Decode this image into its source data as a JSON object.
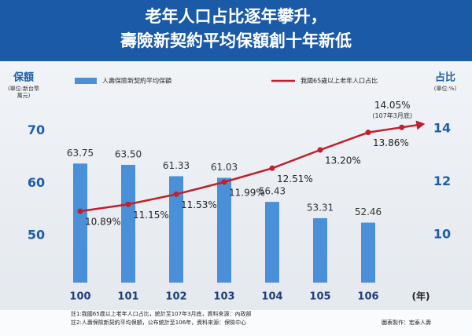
{
  "chart_data": {
    "type": "bar",
    "title": [
      "老年人口占比逐年攀升，",
      "壽險新契約平均保額創十年新低"
    ],
    "y_label": "保額",
    "y_unit": "(單位:新台幣萬元)",
    "y2_label": "占比",
    "y2_unit": "(單位:%)",
    "x_label": "(年)",
    "x": [
      100,
      101,
      102,
      103,
      104,
      105,
      106
    ],
    "xlim": [
      99.4,
      107.3
    ],
    "xticks": [
      100,
      101,
      102,
      103,
      104,
      105,
      106
    ],
    "ylim": [
      41,
      77
    ],
    "yticks": [
      50,
      60,
      70
    ],
    "y2lim": [
      8.2,
      15.3
    ],
    "y2ticks": [
      10,
      12,
      14
    ],
    "series": [
      {
        "name": "人壽保險新契約平均保額",
        "type": "bar",
        "color": "#4a90d9",
        "values": [
          63.75,
          63.5,
          61.33,
          61.03,
          56.43,
          53.31,
          52.46
        ],
        "value_labels": [
          "63.75",
          "63.50",
          "61.33",
          "61.03",
          "56.43",
          "53.31",
          "52.46"
        ]
      },
      {
        "name": "我國65歲以上老年人口占比",
        "type": "line",
        "axis": "y2",
        "color": "#c0202a",
        "x": [
          100,
          101,
          102,
          103,
          104,
          105,
          106,
          106.7
        ],
        "values": [
          10.89,
          11.15,
          11.53,
          11.99,
          12.51,
          13.2,
          13.86,
          14.05
        ],
        "value_labels": [
          "10.89%",
          "11.15%",
          "11.53%",
          "11.99%",
          "12.51%",
          "13.20%",
          "13.86%",
          "14.05%"
        ]
      }
    ],
    "annotations": [
      "(107年3月底)"
    ],
    "notes": [
      "註1:我國65歲以上老年人口占比，統計至107年3月底，資料來源：內政部",
      "註2:人壽保險新契約平均保額，公布統計至106年，資料來源：保險中心"
    ],
    "credit": "圖表製作：宏泰人壽"
  }
}
